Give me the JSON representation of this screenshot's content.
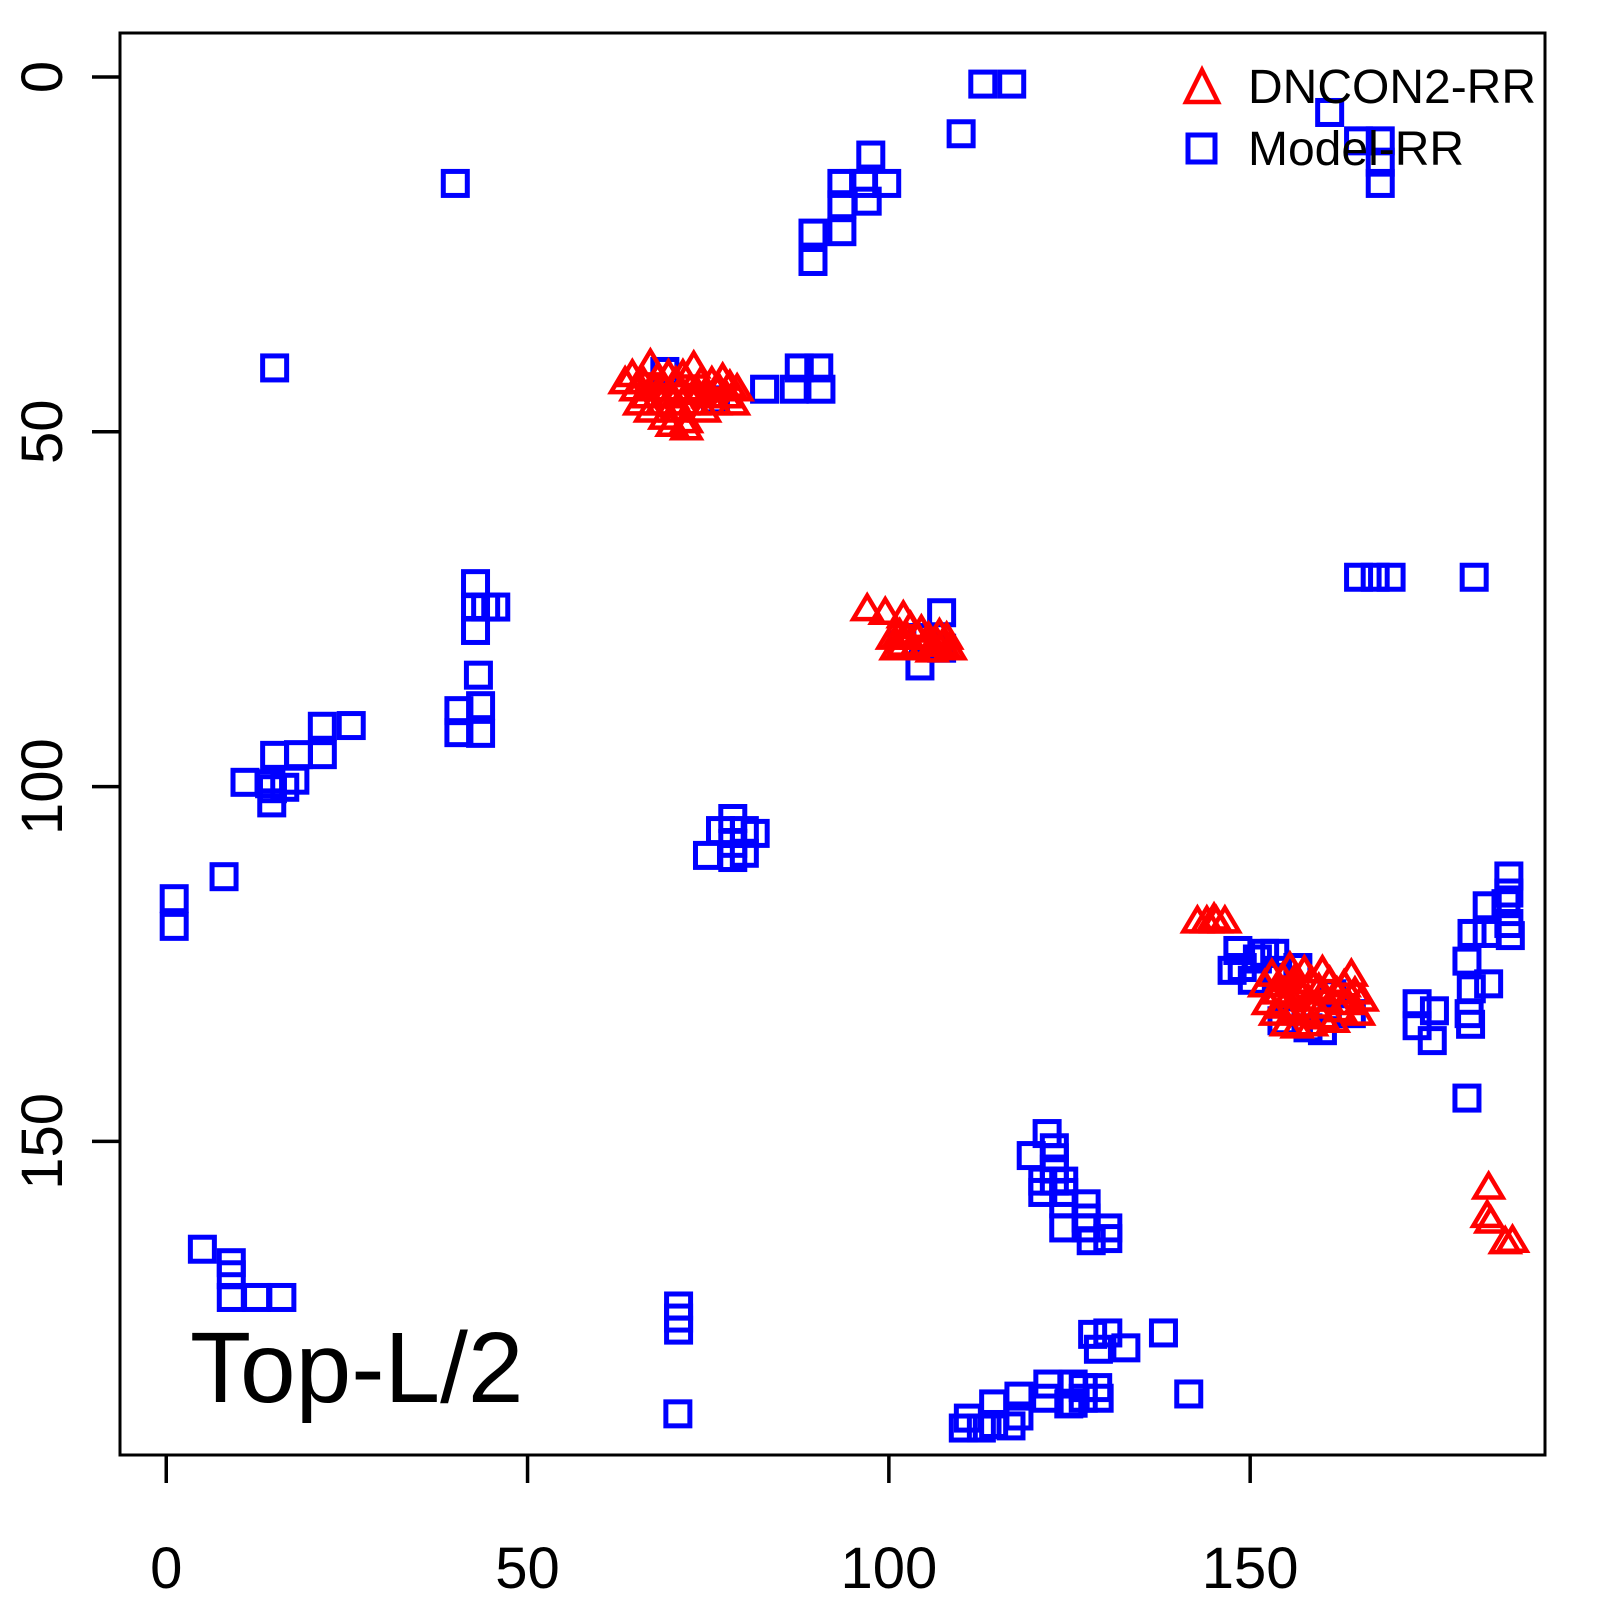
{
  "chart_data": {
    "type": "scatter",
    "title": "",
    "xlabel": "",
    "ylabel": "",
    "annotation": "Top-L/2",
    "x_axis": {
      "ticks": [
        0,
        50,
        100,
        150
      ],
      "range": [
        -6.4,
        190.8
      ]
    },
    "y_axis": {
      "ticks": [
        0,
        50,
        100,
        150
      ],
      "range": [
        -6.2,
        194.2
      ],
      "inverted": true
    },
    "legend": {
      "position": "top-right",
      "frame": false
    },
    "grid": false,
    "marker_colors": {
      "DNCON2-RR": "#FF0000",
      "Model-RR": "#0000FF"
    },
    "draw_order": [
      1,
      0
    ],
    "series": [
      {
        "name": "DNCON2-RR",
        "marker": "open-triangle",
        "color": "#FF0000",
        "points": [
          [
            63.5,
            43
          ],
          [
            64.5,
            42
          ],
          [
            65,
            44
          ],
          [
            65.5,
            46
          ],
          [
            66,
            43
          ],
          [
            66.5,
            45
          ],
          [
            67,
            40.5
          ],
          [
            67,
            47
          ],
          [
            67.5,
            44
          ],
          [
            68,
            42.5
          ],
          [
            68.5,
            46
          ],
          [
            69,
            44
          ],
          [
            69,
            48
          ],
          [
            69.5,
            42
          ],
          [
            70,
            45
          ],
          [
            70,
            49
          ],
          [
            70.5,
            43
          ],
          [
            70.5,
            47
          ],
          [
            71,
            44.5
          ],
          [
            71.5,
            42
          ],
          [
            71.5,
            46
          ],
          [
            72,
            48.5
          ],
          [
            72,
            49.5
          ],
          [
            72.5,
            44
          ],
          [
            73,
            40.8
          ],
          [
            73,
            46
          ],
          [
            73.5,
            44.5
          ],
          [
            74,
            43
          ],
          [
            74.5,
            47
          ],
          [
            75,
            45
          ],
          [
            75.5,
            43
          ],
          [
            76,
            46
          ],
          [
            76.5,
            44
          ],
          [
            77,
            42.5
          ],
          [
            77.5,
            45
          ],
          [
            78,
            43.5
          ],
          [
            78.5,
            46
          ],
          [
            79,
            44
          ],
          [
            97,
            75
          ],
          [
            99.5,
            75.5
          ],
          [
            102,
            76
          ],
          [
            100.5,
            79
          ],
          [
            101,
            80.5
          ],
          [
            101.5,
            78.5
          ],
          [
            102,
            80
          ],
          [
            102.5,
            79
          ],
          [
            103,
            77.5
          ],
          [
            103.5,
            80.5
          ],
          [
            104,
            79
          ],
          [
            104.5,
            78
          ],
          [
            105,
            80
          ],
          [
            105.5,
            79
          ],
          [
            106,
            80.8
          ],
          [
            106.5,
            79.5
          ],
          [
            107,
            78.5
          ],
          [
            107.5,
            80
          ],
          [
            108,
            79
          ],
          [
            108.5,
            80.5
          ],
          [
            142.7,
            119
          ],
          [
            144,
            119
          ],
          [
            145.3,
            119
          ],
          [
            146.5,
            119
          ],
          [
            145,
            118.6
          ],
          [
            152,
            128
          ],
          [
            152.5,
            130.5
          ],
          [
            153,
            126.5
          ],
          [
            153.5,
            132
          ],
          [
            154,
            129
          ],
          [
            154.5,
            127
          ],
          [
            154.5,
            131
          ],
          [
            155,
            133.5
          ],
          [
            155.5,
            125.5
          ],
          [
            155.5,
            129.5
          ],
          [
            156,
            127.5
          ],
          [
            156,
            131.5
          ],
          [
            156.5,
            133.8
          ],
          [
            157,
            129
          ],
          [
            157.5,
            126
          ],
          [
            157.5,
            132
          ],
          [
            158,
            130
          ],
          [
            158.5,
            127.5
          ],
          [
            158.5,
            133.5
          ],
          [
            159,
            131
          ],
          [
            159.5,
            128.5
          ],
          [
            160,
            126
          ],
          [
            160,
            132.5
          ],
          [
            160.5,
            130
          ],
          [
            161,
            127.5
          ],
          [
            161.5,
            133
          ],
          [
            162,
            129
          ],
          [
            162.5,
            131.5
          ],
          [
            163,
            128
          ],
          [
            163.5,
            130.5
          ],
          [
            164,
            126.5
          ],
          [
            164.5,
            129
          ],
          [
            165,
            132
          ],
          [
            165.5,
            130
          ],
          [
            183,
            156.5
          ],
          [
            182.8,
            160.5
          ],
          [
            183.3,
            161.3
          ],
          [
            185.3,
            164.2
          ],
          [
            186.3,
            164
          ]
        ]
      },
      {
        "name": "Model-RR",
        "marker": "open-square",
        "color": "#0000FF",
        "points": [
          [
            113,
            1
          ],
          [
            117,
            1
          ],
          [
            110,
            8
          ],
          [
            97.5,
            11
          ],
          [
            93.5,
            15
          ],
          [
            96.5,
            15
          ],
          [
            99.7,
            15
          ],
          [
            93.5,
            18
          ],
          [
            97,
            17.5
          ],
          [
            93.5,
            21.8
          ],
          [
            89.5,
            22
          ],
          [
            89.5,
            26
          ],
          [
            161,
            5
          ],
          [
            165,
            9
          ],
          [
            168,
            9
          ],
          [
            168,
            12
          ],
          [
            168,
            15
          ],
          [
            40,
            15
          ],
          [
            15,
            41
          ],
          [
            69,
            41.5
          ],
          [
            76,
            45.5
          ],
          [
            82.8,
            44
          ],
          [
            86.9,
            44
          ],
          [
            87.6,
            41
          ],
          [
            90.3,
            41
          ],
          [
            90.6,
            44
          ],
          [
            107.3,
            75.5
          ],
          [
            104.8,
            79
          ],
          [
            107.3,
            80.5
          ],
          [
            101.8,
            80
          ],
          [
            104.3,
            83
          ],
          [
            42.8,
            71.4
          ],
          [
            42.8,
            74.7
          ],
          [
            44.2,
            74.7
          ],
          [
            45.6,
            74.7
          ],
          [
            42.8,
            78
          ],
          [
            43.2,
            84.3
          ],
          [
            43.5,
            88.6
          ],
          [
            40.5,
            89.3
          ],
          [
            40.5,
            92.4
          ],
          [
            43.5,
            92.5
          ],
          [
            21.6,
            91.5
          ],
          [
            25.6,
            91.4
          ],
          [
            15,
            95.6
          ],
          [
            18.3,
            95.5
          ],
          [
            21.6,
            95.5
          ],
          [
            10.9,
            99.4
          ],
          [
            14.3,
            99.6
          ],
          [
            17.8,
            99.1
          ],
          [
            14.7,
            100.3
          ],
          [
            16.4,
            100.1
          ],
          [
            14.6,
            102.3
          ],
          [
            8,
            112.7
          ],
          [
            1.1,
            115.8
          ],
          [
            1.1,
            119.7
          ],
          [
            78.4,
            104.5
          ],
          [
            76.7,
            106.2
          ],
          [
            80,
            106.2
          ],
          [
            81.5,
            106.6
          ],
          [
            78.4,
            108
          ],
          [
            74.9,
            109.7
          ],
          [
            78.4,
            110
          ],
          [
            80,
            109.4
          ],
          [
            165,
            70.5
          ],
          [
            167.3,
            70.5
          ],
          [
            169.5,
            70.5
          ],
          [
            181,
            70.5
          ],
          [
            148.3,
            123.1
          ],
          [
            148.9,
            125.5
          ],
          [
            152,
            123.5
          ],
          [
            153.4,
            123.5
          ],
          [
            147.5,
            125.9
          ],
          [
            150.3,
            127.3
          ],
          [
            153.8,
            125.9
          ],
          [
            151,
            124.3
          ],
          [
            156.6,
            125.5
          ],
          [
            161.3,
            129.2
          ],
          [
            164,
            132
          ],
          [
            154.4,
            133
          ],
          [
            158,
            134
          ],
          [
            160,
            134.4
          ],
          [
            185.8,
            112.6
          ],
          [
            182.8,
            116.8
          ],
          [
            185.4,
            116.5
          ],
          [
            185.8,
            115
          ],
          [
            180.7,
            120.7
          ],
          [
            182.8,
            120.7
          ],
          [
            185.8,
            119.3
          ],
          [
            186,
            121
          ],
          [
            180,
            124.6
          ],
          [
            180.6,
            128.5
          ],
          [
            183,
            127.8
          ],
          [
            180.3,
            132
          ],
          [
            180.5,
            133.5
          ],
          [
            173.1,
            130.6
          ],
          [
            175.5,
            131.6
          ],
          [
            173.1,
            133.7
          ],
          [
            175.2,
            135.8
          ],
          [
            180,
            143.9
          ],
          [
            121.9,
            148.9
          ],
          [
            122.9,
            150.9
          ],
          [
            119.7,
            152
          ],
          [
            122.9,
            152.3
          ],
          [
            122.9,
            153.9
          ],
          [
            121.3,
            155.6
          ],
          [
            122.9,
            155.6
          ],
          [
            124.2,
            155.6
          ],
          [
            121.3,
            157.2
          ],
          [
            124.2,
            157.2
          ],
          [
            124.2,
            158.8
          ],
          [
            127.3,
            158.8
          ],
          [
            127.3,
            160.8
          ],
          [
            124.2,
            162.2
          ],
          [
            127.3,
            162.2
          ],
          [
            130.3,
            162.2
          ],
          [
            130.3,
            163.7
          ],
          [
            128,
            164
          ],
          [
            5,
            165.2
          ],
          [
            9,
            167.1
          ],
          [
            9,
            168.8
          ],
          [
            9,
            172
          ],
          [
            12.5,
            172
          ],
          [
            16,
            172
          ],
          [
            70.9,
            173.2
          ],
          [
            70.9,
            174.9
          ],
          [
            70.9,
            176.6
          ],
          [
            70.8,
            188.4
          ],
          [
            128.2,
            177.2
          ],
          [
            130.3,
            177
          ],
          [
            129,
            179.3
          ],
          [
            132.8,
            179.1
          ],
          [
            122,
            184.2
          ],
          [
            125.5,
            184.2
          ],
          [
            126.9,
            184.7
          ],
          [
            128.9,
            184.7
          ],
          [
            125.5,
            186.9
          ],
          [
            118,
            185.9
          ],
          [
            118,
            188.7
          ],
          [
            114.5,
            187
          ],
          [
            111,
            189
          ],
          [
            110.3,
            190.4
          ],
          [
            112.8,
            190.4
          ],
          [
            114.5,
            189.9
          ],
          [
            116.9,
            190.1
          ],
          [
            121.7,
            186.2
          ],
          [
            124.9,
            187
          ],
          [
            126.9,
            186.2
          ],
          [
            129.1,
            186.2
          ],
          [
            138,
            177
          ],
          [
            141.5,
            185.6
          ]
        ]
      }
    ]
  }
}
